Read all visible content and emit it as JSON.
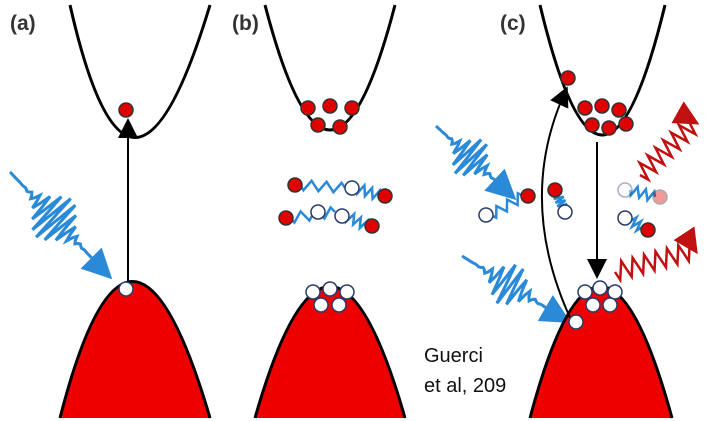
{
  "panels": [
    {
      "label": "(a)"
    },
    {
      "label": "(b)"
    },
    {
      "label": "(c)"
    }
  ],
  "citation": {
    "lines": [
      "Guerci",
      "et al, 209"
    ]
  }
}
